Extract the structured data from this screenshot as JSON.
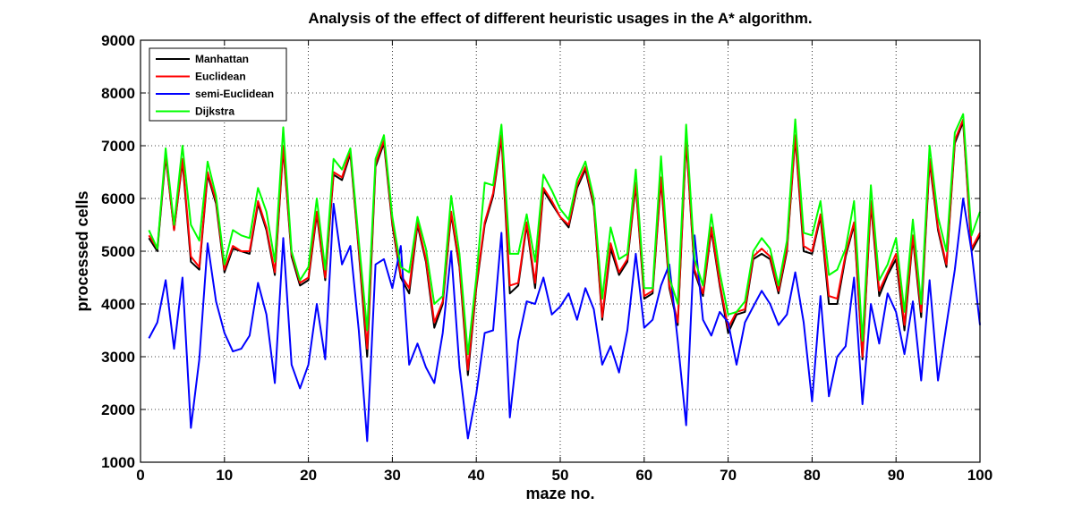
{
  "chart_data": {
    "type": "line",
    "title": "Analysis of the effect of different heuristic usages in the A* algorithm.",
    "xlabel": "maze no.",
    "ylabel": "processed cells",
    "xlim": [
      0,
      100
    ],
    "ylim": [
      1000,
      9000
    ],
    "xticks": [
      0,
      10,
      20,
      30,
      40,
      50,
      60,
      70,
      80,
      90,
      100
    ],
    "yticks": [
      1000,
      2000,
      3000,
      4000,
      5000,
      6000,
      7000,
      8000,
      9000
    ],
    "grid": true,
    "legend_position": "top-left",
    "x": [
      1,
      2,
      3,
      4,
      5,
      6,
      7,
      8,
      9,
      10,
      11,
      12,
      13,
      14,
      15,
      16,
      17,
      18,
      19,
      20,
      21,
      22,
      23,
      24,
      25,
      26,
      27,
      28,
      29,
      30,
      31,
      32,
      33,
      34,
      35,
      36,
      37,
      38,
      39,
      40,
      41,
      42,
      43,
      44,
      45,
      46,
      47,
      48,
      49,
      50,
      51,
      52,
      53,
      54,
      55,
      56,
      57,
      58,
      59,
      60,
      61,
      62,
      63,
      64,
      65,
      66,
      67,
      68,
      69,
      70,
      71,
      72,
      73,
      74,
      75,
      76,
      77,
      78,
      79,
      80,
      81,
      82,
      83,
      84,
      85,
      86,
      87,
      88,
      89,
      90,
      91,
      92,
      93,
      94,
      95,
      96,
      97,
      98,
      99,
      100
    ],
    "series": [
      {
        "name": "Manhattan",
        "color": "#000000",
        "values": [
          5250,
          5000,
          6800,
          5400,
          6700,
          4800,
          4650,
          6450,
          5900,
          4600,
          5050,
          5000,
          4950,
          5900,
          5400,
          4550,
          6950,
          4900,
          4350,
          4450,
          5700,
          4450,
          6450,
          6350,
          6850,
          5000,
          3000,
          6600,
          7050,
          5500,
          4500,
          4200,
          5500,
          4800,
          3550,
          4000,
          5700,
          4700,
          2650,
          4300,
          5500,
          6050,
          7150,
          4200,
          4350,
          5500,
          4300,
          6150,
          5900,
          5650,
          5450,
          6200,
          6550,
          5850,
          3700,
          5050,
          4550,
          4800,
          6250,
          4100,
          4200,
          6350,
          4300,
          3600,
          7100,
          4600,
          4150,
          5400,
          4350,
          3450,
          3800,
          3850,
          4850,
          4950,
          4850,
          4200,
          5000,
          7150,
          5000,
          4950,
          5650,
          4000,
          4000,
          4900,
          5500,
          2950,
          5900,
          4150,
          4550,
          4850,
          3500,
          5250,
          3750,
          6700,
          5400,
          4700,
          7050,
          7450,
          5000,
          5300
        ]
      },
      {
        "name": "Euclidean",
        "color": "#ff0000",
        "values": [
          5300,
          5050,
          6850,
          5400,
          6750,
          4900,
          4700,
          6500,
          5950,
          4650,
          5100,
          5000,
          5000,
          5950,
          5450,
          4600,
          7000,
          4950,
          4400,
          4500,
          5750,
          4500,
          6500,
          6400,
          6900,
          5050,
          3150,
          6650,
          7100,
          5550,
          4550,
          4300,
          5550,
          4850,
          3650,
          4050,
          5750,
          4750,
          2750,
          4350,
          5550,
          6100,
          7200,
          4350,
          4400,
          5550,
          4400,
          6200,
          5950,
          5650,
          5500,
          6250,
          6600,
          5900,
          3750,
          5150,
          4600,
          4850,
          6300,
          4150,
          4250,
          6400,
          4350,
          3650,
          7150,
          4650,
          4200,
          5450,
          4400,
          3550,
          3850,
          3900,
          4900,
          5050,
          4900,
          4250,
          5050,
          7200,
          5100,
          5000,
          5700,
          4150,
          4100,
          4950,
          5550,
          3000,
          5950,
          4250,
          4600,
          4950,
          3600,
          5300,
          3850,
          6750,
          5450,
          4750,
          7100,
          7500,
          5050,
          5350
        ]
      },
      {
        "name": "semi-Euclidean",
        "color": "#0000ff",
        "values": [
          3350,
          3650,
          4450,
          3150,
          4500,
          1650,
          2950,
          5150,
          4050,
          3450,
          3100,
          3150,
          3400,
          4400,
          3800,
          2500,
          5250,
          2850,
          2400,
          2850,
          4000,
          2950,
          5900,
          4750,
          5100,
          3500,
          1400,
          4750,
          4850,
          4300,
          5100,
          2850,
          3250,
          2800,
          2500,
          3450,
          5000,
          2800,
          1450,
          2300,
          3450,
          3500,
          5350,
          1850,
          3300,
          4050,
          4000,
          4500,
          3800,
          3950,
          4200,
          3700,
          4300,
          3900,
          2850,
          3200,
          2700,
          3500,
          4950,
          3550,
          3700,
          4350,
          4750,
          3300,
          1700,
          5300,
          3700,
          3400,
          3850,
          3650,
          2850,
          3650,
          3950,
          4250,
          4000,
          3600,
          3800,
          4600,
          3650,
          2150,
          4150,
          2250,
          3000,
          3200,
          4500,
          2100,
          4000,
          3250,
          4200,
          3850,
          3050,
          4050,
          2550,
          4450,
          2550,
          3600,
          4650,
          6000,
          5000,
          3600
        ]
      },
      {
        "name": "Dijkstra",
        "color": "#00ff00",
        "values": [
          5400,
          5050,
          6950,
          5500,
          7000,
          5500,
          5200,
          6700,
          6050,
          4750,
          5400,
          5300,
          5250,
          6200,
          5750,
          4800,
          7350,
          5000,
          4450,
          4700,
          6000,
          4650,
          6750,
          6550,
          6950,
          5200,
          3500,
          6750,
          7200,
          5650,
          4700,
          4600,
          5650,
          5050,
          4000,
          4150,
          6050,
          4950,
          3050,
          4500,
          6300,
          6250,
          7400,
          4950,
          4950,
          5700,
          4800,
          6450,
          6150,
          5800,
          5600,
          6350,
          6700,
          6000,
          4100,
          5450,
          4850,
          4950,
          6550,
          4300,
          4300,
          6800,
          4500,
          4000,
          7400,
          4850,
          4350,
          5700,
          4600,
          3800,
          3850,
          4050,
          5000,
          5250,
          5050,
          4350,
          5200,
          7500,
          5350,
          5300,
          5950,
          4550,
          4650,
          5050,
          5950,
          3300,
          6250,
          4450,
          4750,
          5250,
          3850,
          5600,
          4000,
          7000,
          5650,
          5000,
          7250,
          7600,
          5300,
          5750
        ]
      }
    ]
  }
}
